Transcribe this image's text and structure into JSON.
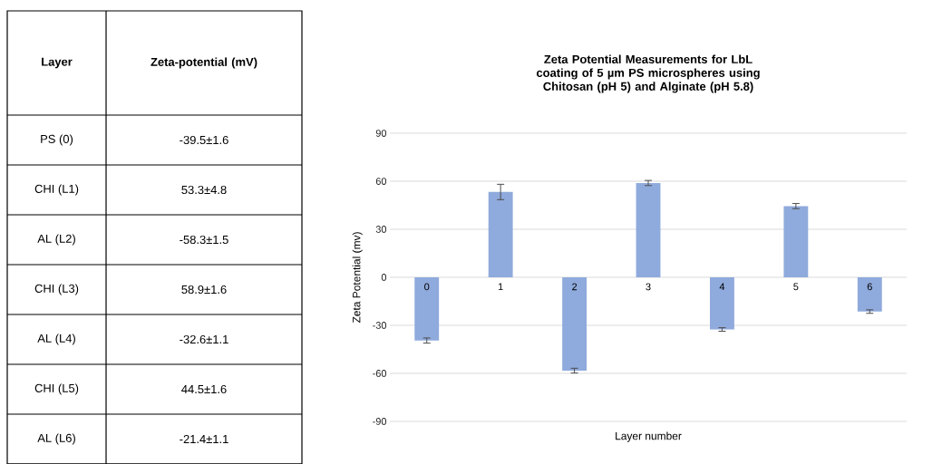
{
  "chart_data": [
    {
      "type": "other",
      "annotations": [
        "Layer",
        "Zeta-potential (mV)",
        "PS (0)",
        "-39.5±1.6",
        "CHI (L1)",
        "53.3±4.8",
        "AL (L2)",
        "-58.3±1.5",
        "CHI (L3)",
        "58.9±1.6",
        "AL (L4)",
        "-32.6±1.1",
        "CHI (L5)",
        "44.5±1.6",
        "AL (L6)",
        "-21.4±1.1"
      ]
    },
    {
      "type": "bar",
      "title": "Zeta Potential Measurements for LbL coating of 5 µm PS microspheres using Chitosan (pH 5) and Alginate (pH 5.8)",
      "xlabel": "Layer number",
      "ylabel": "Zeta Potential (mv)",
      "categories": [
        "0",
        "1",
        "2",
        "3",
        "4",
        "5",
        "6"
      ],
      "values": [
        -39.5,
        53.3,
        -58.3,
        58.9,
        -32.6,
        44.5,
        -21.4
      ],
      "errors": [
        1.6,
        4.8,
        1.5,
        1.6,
        1.1,
        1.6,
        1.1
      ],
      "color": "#8faadc",
      "ylim": [
        -90,
        90
      ],
      "yticks": [
        -90,
        -60,
        -30,
        0,
        30,
        60,
        90
      ],
      "grid": "y"
    }
  ]
}
